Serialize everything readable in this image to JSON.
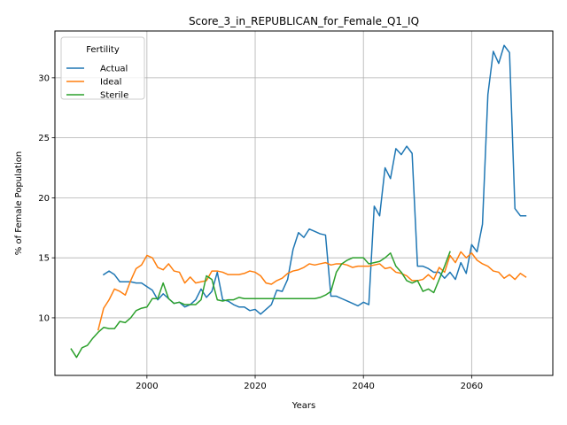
{
  "chart_data": {
    "type": "line",
    "title": "Score_3_in_REPUBLICAN_for_Female_Q1_IQ",
    "xlabel": "Years",
    "ylabel": "% of Female Population",
    "xlim": [
      1983,
      2075
    ],
    "ylim": [
      5.2,
      33.9
    ],
    "xticks": [
      2000,
      2020,
      2040,
      2060
    ],
    "yticks": [
      10,
      15,
      20,
      25,
      30
    ],
    "grid": true,
    "legend": {
      "title": "Fertility",
      "placement": "top-left"
    },
    "series": [
      {
        "name": "Actual",
        "color": "#1f77b4",
        "points": [
          [
            1992,
            13.6
          ],
          [
            1993,
            13.9
          ],
          [
            1994,
            13.6
          ],
          [
            1995,
            13.0
          ],
          [
            1996,
            13.0
          ],
          [
            1997,
            13.0
          ],
          [
            1998,
            12.9
          ],
          [
            1999,
            12.9
          ],
          [
            2000,
            12.6
          ],
          [
            2001,
            12.3
          ],
          [
            2002,
            11.5
          ],
          [
            2003,
            12.0
          ],
          [
            2004,
            11.6
          ],
          [
            2005,
            11.2
          ],
          [
            2006,
            11.3
          ],
          [
            2007,
            10.9
          ],
          [
            2008,
            11.1
          ],
          [
            2009,
            11.5
          ],
          [
            2010,
            12.4
          ],
          [
            2011,
            11.7
          ],
          [
            2012,
            12.2
          ],
          [
            2013,
            13.8
          ],
          [
            2014,
            11.5
          ],
          [
            2015,
            11.4
          ],
          [
            2016,
            11.1
          ],
          [
            2017,
            10.9
          ],
          [
            2018,
            10.9
          ],
          [
            2019,
            10.6
          ],
          [
            2020,
            10.7
          ],
          [
            2021,
            10.3
          ],
          [
            2022,
            10.7
          ],
          [
            2023,
            11.1
          ],
          [
            2024,
            12.3
          ],
          [
            2025,
            12.2
          ],
          [
            2026,
            13.2
          ],
          [
            2027,
            15.7
          ],
          [
            2028,
            17.1
          ],
          [
            2029,
            16.7
          ],
          [
            2030,
            17.4
          ],
          [
            2031,
            17.2
          ],
          [
            2032,
            17.0
          ],
          [
            2033,
            16.9
          ],
          [
            2034,
            11.8
          ],
          [
            2035,
            11.8
          ],
          [
            2036,
            11.6
          ],
          [
            2037,
            11.4
          ],
          [
            2038,
            11.2
          ],
          [
            2039,
            11.0
          ],
          [
            2040,
            11.3
          ],
          [
            2041,
            11.1
          ],
          [
            2042,
            19.3
          ],
          [
            2043,
            18.5
          ],
          [
            2044,
            22.5
          ],
          [
            2045,
            21.6
          ],
          [
            2046,
            24.1
          ],
          [
            2047,
            23.6
          ],
          [
            2048,
            24.3
          ],
          [
            2049,
            23.7
          ],
          [
            2050,
            14.3
          ],
          [
            2051,
            14.3
          ],
          [
            2052,
            14.1
          ],
          [
            2053,
            13.8
          ],
          [
            2054,
            13.8
          ],
          [
            2055,
            13.3
          ],
          [
            2056,
            13.8
          ],
          [
            2057,
            13.2
          ],
          [
            2058,
            14.6
          ],
          [
            2059,
            13.7
          ],
          [
            2060,
            16.1
          ],
          [
            2061,
            15.5
          ],
          [
            2062,
            17.8
          ],
          [
            2063,
            28.6
          ],
          [
            2064,
            32.2
          ],
          [
            2065,
            31.2
          ],
          [
            2066,
            32.7
          ],
          [
            2067,
            32.1
          ],
          [
            2068,
            19.1
          ],
          [
            2069,
            18.5
          ],
          [
            2070,
            18.5
          ]
        ]
      },
      {
        "name": "Ideal",
        "color": "#ff7f0e",
        "points": [
          [
            1991,
            9.0
          ],
          [
            1992,
            10.8
          ],
          [
            1993,
            11.5
          ],
          [
            1994,
            12.4
          ],
          [
            1995,
            12.2
          ],
          [
            1996,
            11.9
          ],
          [
            1997,
            13.1
          ],
          [
            1998,
            14.1
          ],
          [
            1999,
            14.4
          ],
          [
            2000,
            15.2
          ],
          [
            2001,
            15.0
          ],
          [
            2002,
            14.2
          ],
          [
            2003,
            14.0
          ],
          [
            2004,
            14.5
          ],
          [
            2005,
            13.9
          ],
          [
            2006,
            13.8
          ],
          [
            2007,
            12.9
          ],
          [
            2008,
            13.4
          ],
          [
            2009,
            12.9
          ],
          [
            2010,
            13.0
          ],
          [
            2011,
            13.1
          ],
          [
            2012,
            13.9
          ],
          [
            2013,
            13.9
          ],
          [
            2014,
            13.8
          ],
          [
            2015,
            13.6
          ],
          [
            2016,
            13.6
          ],
          [
            2017,
            13.6
          ],
          [
            2018,
            13.7
          ],
          [
            2019,
            13.9
          ],
          [
            2020,
            13.8
          ],
          [
            2021,
            13.5
          ],
          [
            2022,
            12.9
          ],
          [
            2023,
            12.8
          ],
          [
            2024,
            13.1
          ],
          [
            2025,
            13.3
          ],
          [
            2026,
            13.7
          ],
          [
            2027,
            13.9
          ],
          [
            2028,
            14.0
          ],
          [
            2029,
            14.2
          ],
          [
            2030,
            14.5
          ],
          [
            2031,
            14.4
          ],
          [
            2032,
            14.5
          ],
          [
            2033,
            14.6
          ],
          [
            2034,
            14.4
          ],
          [
            2035,
            14.5
          ],
          [
            2036,
            14.5
          ],
          [
            2037,
            14.4
          ],
          [
            2038,
            14.2
          ],
          [
            2039,
            14.3
          ],
          [
            2040,
            14.3
          ],
          [
            2041,
            14.3
          ],
          [
            2042,
            14.4
          ],
          [
            2043,
            14.5
          ],
          [
            2044,
            14.1
          ],
          [
            2045,
            14.2
          ],
          [
            2046,
            13.8
          ],
          [
            2047,
            13.7
          ],
          [
            2048,
            13.5
          ],
          [
            2049,
            13.1
          ],
          [
            2050,
            13.1
          ],
          [
            2051,
            13.2
          ],
          [
            2052,
            13.6
          ],
          [
            2053,
            13.2
          ],
          [
            2054,
            14.2
          ],
          [
            2055,
            13.8
          ],
          [
            2056,
            15.2
          ],
          [
            2057,
            14.6
          ],
          [
            2058,
            15.5
          ],
          [
            2059,
            15.0
          ],
          [
            2060,
            15.4
          ],
          [
            2061,
            14.8
          ],
          [
            2062,
            14.5
          ],
          [
            2063,
            14.3
          ],
          [
            2064,
            13.9
          ],
          [
            2065,
            13.8
          ],
          [
            2066,
            13.3
          ],
          [
            2067,
            13.6
          ],
          [
            2068,
            13.2
          ],
          [
            2069,
            13.7
          ],
          [
            2070,
            13.4
          ]
        ]
      },
      {
        "name": "Sterile",
        "color": "#2ca02c",
        "points": [
          [
            1986,
            7.4
          ],
          [
            1987,
            6.7
          ],
          [
            1988,
            7.5
          ],
          [
            1989,
            7.7
          ],
          [
            1990,
            8.3
          ],
          [
            1991,
            8.8
          ],
          [
            1992,
            9.2
          ],
          [
            1993,
            9.1
          ],
          [
            1994,
            9.1
          ],
          [
            1995,
            9.7
          ],
          [
            1996,
            9.6
          ],
          [
            1997,
            10.0
          ],
          [
            1998,
            10.6
          ],
          [
            1999,
            10.8
          ],
          [
            2000,
            10.9
          ],
          [
            2001,
            11.6
          ],
          [
            2002,
            11.6
          ],
          [
            2003,
            12.9
          ],
          [
            2004,
            11.6
          ],
          [
            2005,
            11.2
          ],
          [
            2006,
            11.3
          ],
          [
            2007,
            11.1
          ],
          [
            2008,
            11.1
          ],
          [
            2009,
            11.1
          ],
          [
            2010,
            11.5
          ],
          [
            2011,
            13.5
          ],
          [
            2012,
            13.2
          ],
          [
            2013,
            11.5
          ],
          [
            2014,
            11.4
          ],
          [
            2015,
            11.5
          ],
          [
            2016,
            11.5
          ],
          [
            2017,
            11.7
          ],
          [
            2018,
            11.6
          ],
          [
            2019,
            11.6
          ],
          [
            2020,
            11.6
          ],
          [
            2021,
            11.6
          ],
          [
            2022,
            11.6
          ],
          [
            2023,
            11.6
          ],
          [
            2024,
            11.6
          ],
          [
            2025,
            11.6
          ],
          [
            2026,
            11.6
          ],
          [
            2027,
            11.6
          ],
          [
            2028,
            11.6
          ],
          [
            2029,
            11.6
          ],
          [
            2030,
            11.6
          ],
          [
            2031,
            11.6
          ],
          [
            2032,
            11.7
          ],
          [
            2033,
            11.9
          ],
          [
            2034,
            12.2
          ],
          [
            2035,
            13.8
          ],
          [
            2036,
            14.5
          ],
          [
            2037,
            14.8
          ],
          [
            2038,
            15.0
          ],
          [
            2039,
            15.0
          ],
          [
            2040,
            15.0
          ],
          [
            2041,
            14.5
          ],
          [
            2042,
            14.6
          ],
          [
            2043,
            14.7
          ],
          [
            2044,
            15.0
          ],
          [
            2045,
            15.4
          ],
          [
            2046,
            14.3
          ],
          [
            2047,
            13.8
          ],
          [
            2048,
            13.1
          ],
          [
            2049,
            12.9
          ],
          [
            2050,
            13.1
          ],
          [
            2051,
            12.2
          ],
          [
            2052,
            12.4
          ],
          [
            2053,
            12.1
          ],
          [
            2054,
            13.2
          ],
          [
            2055,
            14.3
          ],
          [
            2056,
            15.5
          ]
        ]
      }
    ]
  }
}
